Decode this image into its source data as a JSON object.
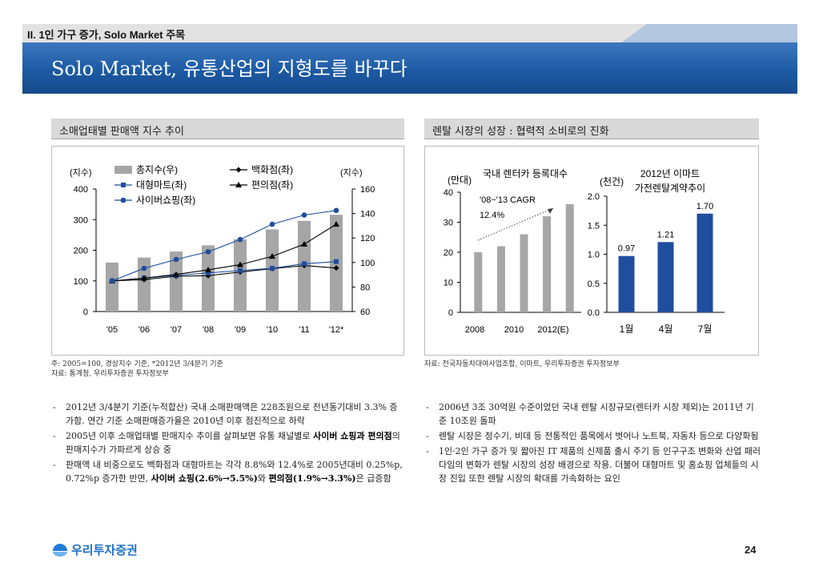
{
  "header": {
    "section": "II. 1인 가구 증가, Solo Market 주목",
    "title": "Solo Market, 유통산업의 지형도를 바꾸다"
  },
  "left_panel": {
    "heading": "소매업태별 판매액 지수 추이",
    "note1": "주: 2005=100, 경상지수 기준, *2012년 3/4분기 기준",
    "note2": "자료: 통계청, 우리투자증권 투자정보부"
  },
  "right_panel": {
    "heading": "렌탈 시장의 성장 : 협력적 소비로의 진화",
    "note1": "자료: 전국자동차대여사업조합, 이마트, 우리투자증권 투자정보부"
  },
  "chart_data": [
    {
      "type": "bar",
      "title": "",
      "left_axis_label": "(지수)",
      "right_axis_label": "(지수)",
      "categories": [
        "'05",
        "'06",
        "'07",
        "'08",
        "'09",
        "'10",
        "'11",
        "'12*"
      ],
      "left_ylim": [
        0,
        400
      ],
      "left_ticks": [
        "0",
        "100",
        "200",
        "300",
        "400"
      ],
      "right_ylim": [
        60,
        160
      ],
      "right_ticks": [
        "60",
        "80",
        "100",
        "120",
        "140",
        "160"
      ],
      "legend": [
        "총지수(우)",
        "백화점(좌)",
        "대형마트(좌)",
        "편의점(좌)",
        "사이버쇼핑(좌)"
      ],
      "series": [
        {
          "name": "총지수(우)",
          "kind": "bar",
          "axis": "right",
          "color": "#a6a6a6",
          "values": [
            100,
            104,
            109,
            114,
            119,
            127,
            134,
            139
          ]
        },
        {
          "name": "백화점(좌)",
          "kind": "line",
          "axis": "left",
          "marker": "diamond",
          "color": "#000000",
          "values": [
            100,
            104,
            115,
            117,
            129,
            140,
            150,
            142
          ]
        },
        {
          "name": "대형마트(좌)",
          "kind": "line",
          "axis": "left",
          "marker": "square",
          "color": "#1f4e9e",
          "values": [
            100,
            109,
            118,
            126,
            134,
            141,
            156,
            163
          ]
        },
        {
          "name": "편의점(좌)",
          "kind": "line",
          "axis": "left",
          "marker": "triangle",
          "color": "#000000",
          "values": [
            100,
            109,
            121,
            136,
            153,
            180,
            220,
            285
          ]
        },
        {
          "name": "사이버쇼핑(좌)",
          "kind": "line",
          "axis": "left",
          "marker": "circle",
          "color": "#1f4e9e",
          "values": [
            100,
            141,
            170,
            195,
            235,
            285,
            315,
            330
          ]
        }
      ]
    },
    {
      "type": "bar",
      "title": "국내 렌터카 등록대수",
      "ylabel": "(만대)",
      "categories": [
        "2008",
        "2009",
        "2010",
        "2011",
        "2012(E)"
      ],
      "x_tick_labels": [
        "2008",
        "2010",
        "2012(E)"
      ],
      "values": [
        20,
        22,
        26,
        32,
        36
      ],
      "ylim": [
        0,
        40
      ],
      "ticks": [
        "0",
        "10",
        "20",
        "30",
        "40"
      ],
      "annotation": [
        "'08~'13 CAGR",
        "12.4%"
      ],
      "color": "#a6a6a6"
    },
    {
      "type": "bar",
      "title": "2012년 이마트 가전렌탈계약추이",
      "title_lines": [
        "2012년 이마트",
        "가전렌탈계약추이"
      ],
      "ylabel": "(천건)",
      "categories": [
        "1월",
        "4월",
        "7월"
      ],
      "values": [
        0.97,
        1.21,
        1.7
      ],
      "value_labels": [
        "0.97",
        "1.21",
        "1.70"
      ],
      "ylim": [
        0,
        2.0
      ],
      "ticks": [
        "0.0",
        "0.5",
        "1.0",
        "1.5",
        "2.0"
      ],
      "color": "#1f4e9e"
    }
  ],
  "left_bullets": [
    {
      "parts": [
        {
          "t": "2012년 3/4분기 기준(누적합산) 국내 소매판매액은 228조원으로 전년동기대비 3.3% 증가함. 연간 기준 소매판매증가율은 2010년 이후 점진적으로 하락",
          "b": false
        }
      ]
    },
    {
      "parts": [
        {
          "t": "2005년 이후 소매업태별 판매지수 추이를 살펴보면 유통 채널별로 ",
          "b": false
        },
        {
          "t": "사이버 쇼핑과 편의점",
          "b": true
        },
        {
          "t": "의 판매지수가 가파르게 상승 중",
          "b": false
        }
      ]
    },
    {
      "parts": [
        {
          "t": "판매액 내 비중으로도 백화점과 대형마트는 각각 8.8%와 12.4%로 2005년대비 0.25%p, 0.72%p 증가한 반면, ",
          "b": false
        },
        {
          "t": "사이버 쇼핑(2.6%→5.5%)",
          "b": true
        },
        {
          "t": "와 ",
          "b": false
        },
        {
          "t": "편의점(1.9%→3.3%)",
          "b": true
        },
        {
          "t": "은 급증함",
          "b": false
        }
      ]
    }
  ],
  "right_bullets": [
    {
      "parts": [
        {
          "t": "2006년 3조 30억원 수준이었던 국내 렌탈 시장규모(렌터카 시장 제외)는 2011년 기준 10조원 돌파",
          "b": false
        }
      ]
    },
    {
      "parts": [
        {
          "t": "렌탈 시장은 정수기, 비데 등 전통적인 품목에서 벗어나 노트북, 자동차 등으로 다양화됨",
          "b": false
        }
      ]
    },
    {
      "parts": [
        {
          "t": "1인·2인 가구 증가 및 짧아진 IT 제품의 신제품 출시 주기 등 인구구조 변화와 산업 패러다임의 변화가 렌탈 시장의 성장 배경으로 작용. 더불어 대형마트 및 홈쇼핑 업체들의 시장 진입 또한 렌탈 시장의 확대를 가속화하는 요인",
          "b": false
        }
      ]
    }
  ],
  "footer": {
    "logo_text": "우리투자증권",
    "page_number": "24"
  },
  "colors": {
    "title_blue": "#1d5aa3",
    "bar_gray": "#a6a6a6",
    "line_blue": "#1f4e9e"
  }
}
